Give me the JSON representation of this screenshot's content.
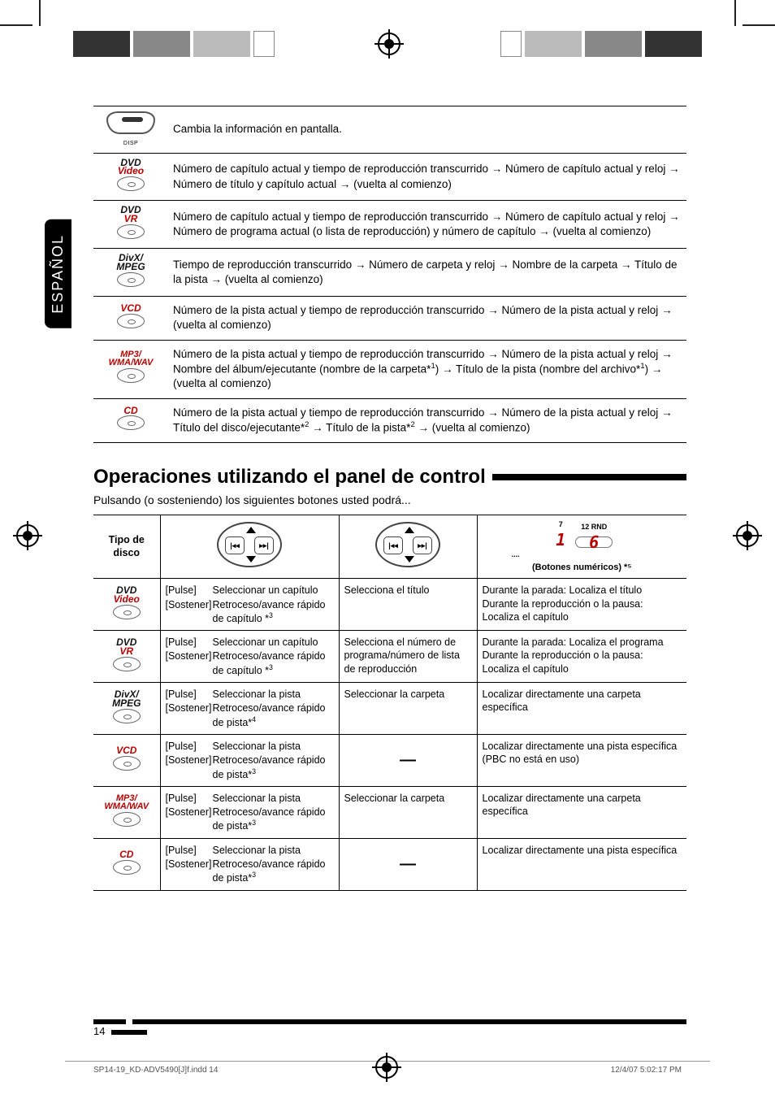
{
  "language_tab": "ESPAÑOL",
  "table1": {
    "rows": [
      {
        "icon": {
          "type": "button",
          "label": "DISP"
        },
        "text": "Cambia la información en pantalla."
      },
      {
        "icon": {
          "type": "disc",
          "line1_a": "DVD",
          "line2_red": "Video"
        },
        "text": "Número de capítulo actual y tiempo de reproducción transcurrido → Número de capítulo actual y reloj → Número de título y capítulo actual → (vuelta al comienzo)"
      },
      {
        "icon": {
          "type": "disc",
          "line1_a": "DVD",
          "line2_red": "VR"
        },
        "text": "Número de capítulo actual y tiempo de reproducción transcurrido → Número de capítulo actual y reloj → Número de programa actual (o lista de reproducción) y número de capítulo → (vuelta al comienzo)"
      },
      {
        "icon": {
          "type": "disc",
          "line1_a": "DivX/",
          "line2_a": "MPEG"
        },
        "text": "Tiempo de reproducción transcurrido → Número de carpeta y reloj → Nombre de la carpeta → Título de la pista → (vuelta al comienzo)"
      },
      {
        "icon": {
          "type": "disc",
          "line1_red": "VCD"
        },
        "text": "Número de la pista actual y tiempo de reproducción transcurrido  → Número de la pista actual y reloj → (vuelta al comienzo)"
      },
      {
        "icon": {
          "type": "disc",
          "line1_red": "MP3/",
          "line2_red": "WMA/WAV",
          "smaller": true
        },
        "text": "Número de la pista actual y tiempo de reproducción transcurrido  → Número de la pista actual y reloj → Nombre del álbum/ejecutante (nombre de la carpeta*¹) → Título de la pista (nombre del archivo*¹) → (vuelta al comienzo)"
      },
      {
        "icon": {
          "type": "disc",
          "line1_red": "CD"
        },
        "text": "Número de la pista actual y tiempo de reproducción transcurrido  → Número de la pista actual y reloj → Título del disco/ejecutante*² → Título de la pista*² → (vuelta al comienzo)"
      }
    ]
  },
  "section_title": "Operaciones utilizando el panel de control",
  "intro": "Pulsando (o sosteniendo) los siguientes botones usted podrá...",
  "table2": {
    "head": {
      "c1": "Tipo de disco",
      "c4_note": "(Botones numéricos) *⁵",
      "num_left_small": "7",
      "num_right_small": "12  RND",
      "num_dots": "...."
    },
    "btn_labels": {
      "prev": "⊲⊲",
      "next": "⊳⊳"
    },
    "pulse": "[Pulse]",
    "sostener": "[Sostener]",
    "rows": [
      {
        "icon": {
          "line1_a": "DVD",
          "line2_red": "Video"
        },
        "c2a": "Seleccionar un capítulo",
        "c2b": "Retroceso/avance rápido de capítulo *³",
        "c3": "Selecciona el título",
        "c4": "Durante la parada: Localiza el título\nDurante la reproducción o la pausa: Localiza el capítulo"
      },
      {
        "icon": {
          "line1_a": "DVD",
          "line2_red": "VR"
        },
        "c2a": "Seleccionar un capítulo",
        "c2b": "Retroceso/avance rápido de capítulo *³",
        "c3": "Selecciona el número de programa/número de lista de reproducción",
        "c4": "Durante la parada: Localiza el programa\nDurante la reproducción o la pausa: Localiza el capítulo"
      },
      {
        "icon": {
          "line1_a": "DivX/",
          "line2_a": "MPEG"
        },
        "c2a": "Seleccionar la pista",
        "c2b": "Retroceso/avance rápido de pista*⁴",
        "c3": "Seleccionar la carpeta",
        "c4": "Localizar directamente una carpeta específica"
      },
      {
        "icon": {
          "line1_red": "VCD"
        },
        "c2a": "Seleccionar la pista",
        "c2b": "Retroceso/avance rápido de pista*³",
        "c3": "—",
        "c3_dash": true,
        "c4": "Localizar directamente una pista específica (PBC no está en uso)"
      },
      {
        "icon": {
          "line1_red": "MP3/",
          "line2_red": "WMA/WAV",
          "smaller": true
        },
        "c2a": "Seleccionar la pista",
        "c2b": "Retroceso/avance rápido de pista*³",
        "c3": "Seleccionar la carpeta",
        "c4": "Localizar directamente una carpeta específica"
      },
      {
        "icon": {
          "line1_red": "CD"
        },
        "c2a": "Seleccionar la pista",
        "c2b": "Retroceso/avance rápido de pista*³",
        "c3": "—",
        "c3_dash": true,
        "c4": "Localizar directamente una pista específica"
      }
    ]
  },
  "page_number": "14",
  "footer_file": "SP14-19_KD-ADV5490[J]f.indd   14",
  "footer_date": "12/4/07   5:02:17 PM",
  "colors": {
    "red": "#b00000",
    "black": "#000000"
  }
}
